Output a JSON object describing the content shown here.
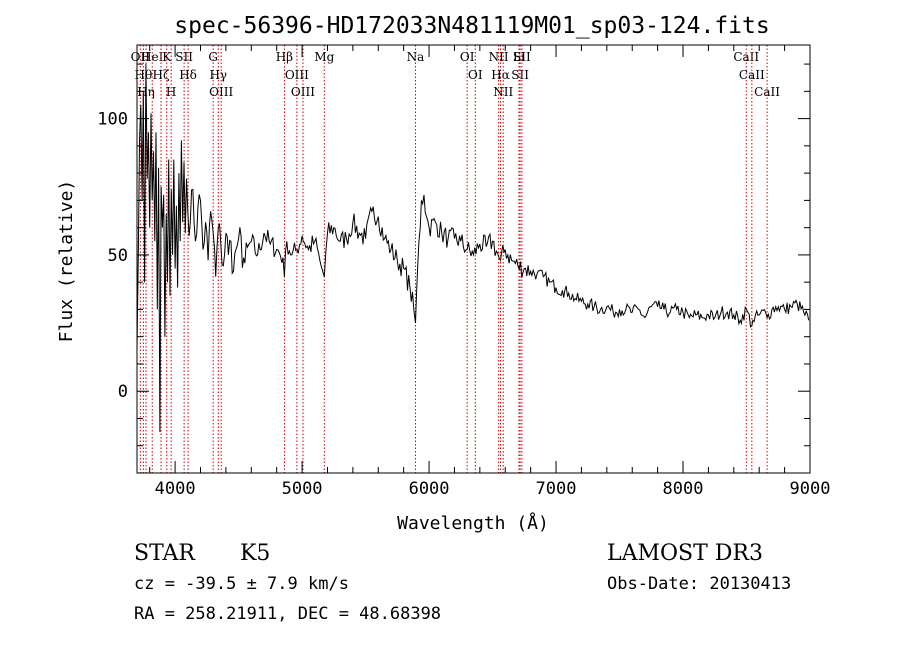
{
  "chart_data": {
    "type": "line",
    "title": "spec-56396-HD172033N481119M01_sp03-124.fits",
    "xlabel": "Wavelength (Å)",
    "ylabel": "Flux (relative)",
    "xlim": [
      3700,
      9000
    ],
    "ylim": [
      -30,
      127
    ],
    "xticks": [
      {
        "value": 4000,
        "label": "4000"
      },
      {
        "value": 5000,
        "label": "5000"
      },
      {
        "value": 6000,
        "label": "6000"
      },
      {
        "value": 7000,
        "label": "7000"
      },
      {
        "value": 8000,
        "label": "8000"
      },
      {
        "value": 9000,
        "label": "9000"
      }
    ],
    "yticks": [
      {
        "value": 0,
        "label": "0"
      },
      {
        "value": 50,
        "label": "50"
      },
      {
        "value": 100,
        "label": "100"
      }
    ],
    "series": [
      {
        "name": "spectrum",
        "color": "#000000",
        "x": [
          3700,
          3710,
          3720,
          3730,
          3740,
          3750,
          3760,
          3770,
          3780,
          3790,
          3800,
          3810,
          3820,
          3830,
          3840,
          3850,
          3860,
          3870,
          3880,
          3890,
          3900,
          3910,
          3920,
          3930,
          3940,
          3950,
          3960,
          3970,
          3980,
          3990,
          4000,
          4010,
          4020,
          4030,
          4040,
          4050,
          4060,
          4070,
          4080,
          4090,
          4100,
          4120,
          4140,
          4160,
          4180,
          4200,
          4220,
          4240,
          4260,
          4280,
          4300,
          4320,
          4340,
          4360,
          4380,
          4400,
          4420,
          4440,
          4460,
          4480,
          4500,
          4550,
          4600,
          4650,
          4700,
          4750,
          4800,
          4850,
          4861,
          4880,
          4920,
          4960,
          5000,
          5050,
          5100,
          5150,
          5175,
          5200,
          5250,
          5300,
          5350,
          5400,
          5450,
          5500,
          5550,
          5600,
          5650,
          5700,
          5750,
          5800,
          5850,
          5880,
          5893,
          5910,
          5940,
          5960,
          5980,
          6000,
          6050,
          6100,
          6150,
          6200,
          6250,
          6300,
          6350,
          6400,
          6450,
          6500,
          6550,
          6563,
          6600,
          6650,
          6700,
          6750,
          6800,
          6850,
          6900,
          6950,
          7000,
          7050,
          7100,
          7150,
          7200,
          7250,
          7300,
          7350,
          7400,
          7450,
          7500,
          7550,
          7600,
          7650,
          7700,
          7750,
          7800,
          7850,
          7900,
          7950,
          8000,
          8050,
          8100,
          8150,
          8200,
          8250,
          8300,
          8350,
          8400,
          8450,
          8500,
          8542,
          8550,
          8600,
          8650,
          8662,
          8700,
          8750,
          8800,
          8850,
          8900,
          8950,
          8990
        ],
        "values": [
          15,
          50,
          92,
          105,
          70,
          110,
          40,
          120,
          78,
          95,
          60,
          102,
          70,
          88,
          55,
          95,
          30,
          82,
          -15,
          75,
          60,
          72,
          20,
          65,
          40,
          85,
          35,
          74,
          50,
          85,
          45,
          68,
          38,
          80,
          55,
          92,
          62,
          84,
          58,
          78,
          66,
          62,
          74,
          55,
          68,
          70,
          52,
          62,
          48,
          66,
          58,
          42,
          60,
          54,
          46,
          58,
          50,
          55,
          44,
          52,
          56,
          47,
          55,
          50,
          58,
          54,
          52,
          49,
          42,
          55,
          50,
          52,
          57,
          52,
          55,
          46,
          42,
          58,
          60,
          55,
          56,
          62,
          58,
          56,
          66,
          64,
          56,
          52,
          48,
          45,
          38,
          30,
          25,
          45,
          70,
          72,
          64,
          60,
          62,
          58,
          56,
          56,
          55,
          52,
          50,
          54,
          53,
          55,
          49,
          48,
          52,
          48,
          46,
          45,
          44,
          43,
          42,
          40,
          38,
          37,
          36,
          34,
          33,
          32,
          31,
          30,
          31,
          29,
          30,
          30,
          29,
          30,
          27,
          31,
          31,
          30,
          29,
          30,
          29,
          27,
          28,
          27,
          28,
          27,
          29,
          29,
          28,
          26,
          30,
          24,
          26,
          28,
          29,
          27,
          30,
          31,
          30,
          31,
          32,
          29,
          26
        ]
      }
    ],
    "line_annotations": [
      {
        "x": 3726,
        "labels": [
          "OII"
        ]
      },
      {
        "x": 3750,
        "labels": [
          "Hθ"
        ]
      },
      {
        "x": 3771,
        "labels": [
          "Hη"
        ]
      },
      {
        "x": 3820,
        "labels": [
          "HeI"
        ]
      },
      {
        "x": 3889,
        "labels": [
          "Hζ"
        ]
      },
      {
        "x": 3934,
        "labels": [
          "K"
        ]
      },
      {
        "x": 3969,
        "labels": [
          "H"
        ]
      },
      {
        "x": 4071,
        "labels": [
          "SII"
        ]
      },
      {
        "x": 4102,
        "labels": [
          "Hδ"
        ]
      },
      {
        "x": 4300,
        "labels": [
          "G"
        ]
      },
      {
        "x": 4340,
        "labels": [
          "Hγ"
        ]
      },
      {
        "x": 4363,
        "labels": [
          "OIII"
        ]
      },
      {
        "x": 4861,
        "labels": [
          "Hβ"
        ]
      },
      {
        "x": 4959,
        "labels": [
          "OIII"
        ]
      },
      {
        "x": 5007,
        "labels": [
          "OIII"
        ]
      },
      {
        "x": 5175,
        "labels": [
          "Mg"
        ]
      },
      {
        "x": 5893,
        "labels": [
          "Na"
        ]
      },
      {
        "x": 6300,
        "labels": [
          "OI"
        ]
      },
      {
        "x": 6364,
        "labels": [
          "OI"
        ]
      },
      {
        "x": 6548,
        "labels": [
          "NII"
        ]
      },
      {
        "x": 6563,
        "labels": [
          "Hα"
        ]
      },
      {
        "x": 6584,
        "labels": [
          "NII"
        ]
      },
      {
        "x": 6708,
        "labels": [
          "Li"
        ]
      },
      {
        "x": 6717,
        "labels": [
          "SII"
        ]
      },
      {
        "x": 6731,
        "labels": [
          "SII"
        ]
      },
      {
        "x": 8498,
        "labels": [
          "CaII"
        ]
      },
      {
        "x": 8542,
        "labels": [
          "CaII"
        ]
      },
      {
        "x": 8662,
        "labels": [
          "CaII"
        ]
      }
    ]
  },
  "info": {
    "object_class": "STAR",
    "subclass": "K5",
    "cz": "cz = -39.5 ± 7.9 km/s",
    "coords": "RA = 258.21911, DEC =  48.68398",
    "survey": "LAMOST DR3",
    "obs_date": "Obs-Date: 20130413"
  },
  "colors": {
    "axis": "#000000",
    "line": "#000000",
    "annotation": "#cc0000"
  }
}
